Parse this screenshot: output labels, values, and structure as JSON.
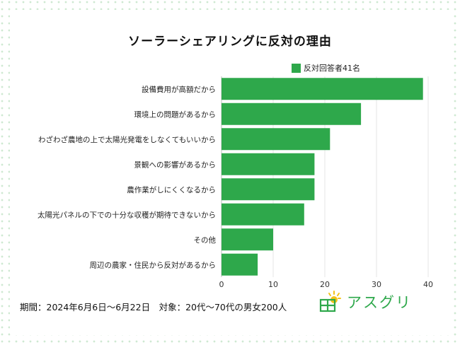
{
  "chart_data": {
    "type": "bar",
    "orientation": "horizontal",
    "title": "ソーラーシェアリングに反対の理由",
    "categories": [
      "設備費用が高額だから",
      "環境上の問題があるから",
      "わざわざ農地の上で太陽光発電をしなくてもいいから",
      "景観への影響があるから",
      "農作業がしにくくなるから",
      "太陽光パネルの下での十分な収穫が期待できないから",
      "その他",
      "周辺の農家・住民から反対があるから"
    ],
    "series": [
      {
        "name": "反対回答者41名",
        "values": [
          39,
          27,
          21,
          18,
          18,
          16,
          10,
          7
        ]
      }
    ],
    "xlim": [
      0,
      40
    ],
    "xticks": [
      "0",
      "10",
      "20",
      "30",
      "40"
    ],
    "grid": true,
    "legend_position": "top-right",
    "bar_color": "#2ea84b"
  },
  "footer_text": "期間：2024年6月6日〜6月22日　対象：20代〜70代の男女200人",
  "logo_text": "アスグリ",
  "colors": {
    "accent": "#2ea84b",
    "sun": "#f2c318"
  }
}
